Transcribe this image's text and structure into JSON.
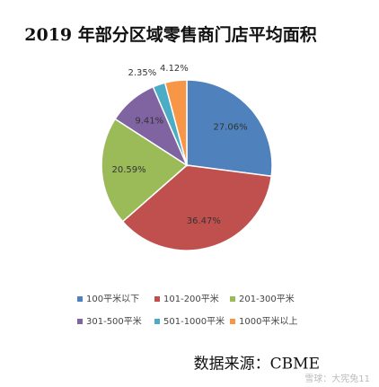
{
  "chart_data": {
    "type": "pie",
    "title": "2019 年部分区域零售商门店平均面积",
    "categories": [
      "100平米以下",
      "101-200平米",
      "201-300平米",
      "301-500平米",
      "501-1000平米",
      "1000平米以上"
    ],
    "values": [
      27.06,
      36.47,
      20.59,
      9.41,
      2.35,
      4.12
    ],
    "value_labels": [
      "27.06%",
      "36.47%",
      "20.59%",
      "9.41%",
      "2.35%",
      "4.12%"
    ],
    "colors": [
      "#4f81bd",
      "#c0504d",
      "#9bbb59",
      "#8064a2",
      "#4bacc6",
      "#f79646"
    ],
    "source": "数据来源：CBME",
    "watermark": "雪球：大宪兔11"
  }
}
